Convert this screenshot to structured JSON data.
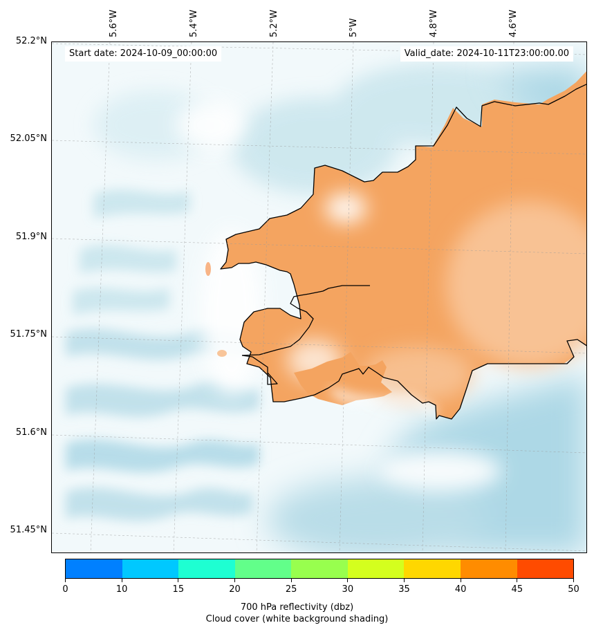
{
  "map": {
    "start_label": "Start date: 2024-10-09_00:00:00",
    "valid_label": "Valid_date: 2024-10-11T23:00:00.00",
    "lon_labels": [
      "5.6°W",
      "5.4°W",
      "5.2°W",
      "5°W",
      "4.8°W",
      "4.6°W"
    ],
    "lat_labels": [
      "52.2°N",
      "52.05°N",
      "51.9°N",
      "51.75°N",
      "51.6°N",
      "51.45°N"
    ],
    "colors": {
      "cloud_light": "#d8edf3",
      "cloud_mid": "#b9dde8",
      "cloud_dark": "#add8e6",
      "reflectivity_land": "#f4a460",
      "reflectivity_pale": "#f8c59a",
      "coastline": "#000000"
    }
  },
  "colorbar": {
    "ticks": [
      "0",
      "10",
      "15",
      "20",
      "25",
      "30",
      "35",
      "40",
      "45",
      "50"
    ],
    "colors": [
      "#0080ff",
      "#00c8ff",
      "#1effd2",
      "#62ff8a",
      "#98ff4e",
      "#d4ff1e",
      "#ffd700",
      "#ff8c00",
      "#ff4b00"
    ],
    "title_line1": "700 hPa reflectivity (dbz)",
    "title_line2": "Cloud cover (white background shading)"
  }
}
